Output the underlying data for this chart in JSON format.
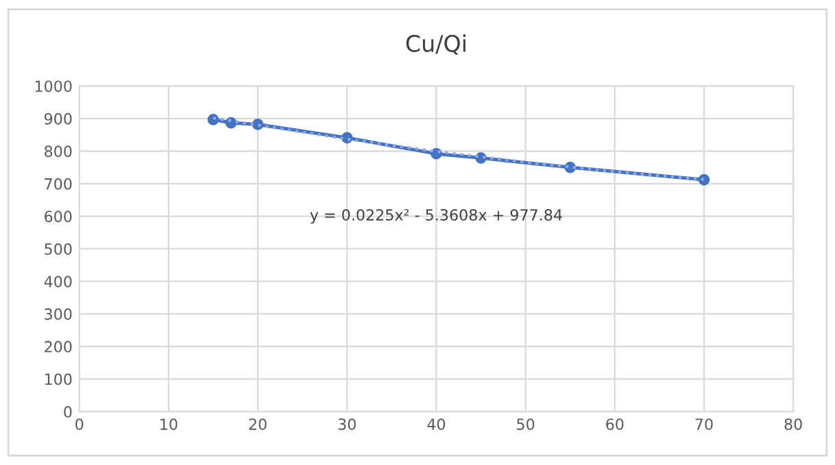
{
  "chart_data": {
    "type": "line",
    "title": "Cu/Qi",
    "series": [
      {
        "color": "#4472c4",
        "x": [
          15,
          17,
          20,
          30,
          40,
          45,
          55,
          70
        ],
        "values": [
          897,
          887,
          882,
          841,
          792,
          779,
          750,
          712
        ],
        "marker": "circle",
        "line_style": "solid"
      },
      {
        "color": "#8faadc",
        "x": [
          15,
          20,
          30,
          40,
          50,
          60,
          70
        ],
        "values": [
          902,
          880,
          837,
          799,
          766,
          737,
          713
        ],
        "marker": "none",
        "line_style": "dotted"
      }
    ],
    "annotations": [
      "y = 0.0225x² - 5.3608x + 977.84"
    ],
    "xlim": [
      0,
      80
    ],
    "xticks": [
      0,
      10,
      20,
      30,
      40,
      50,
      60,
      70,
      80
    ],
    "ylim": [
      0,
      1000
    ],
    "yticks": [
      0,
      100,
      200,
      300,
      400,
      500,
      600,
      700,
      800,
      900,
      1000
    ],
    "grid": true
  }
}
